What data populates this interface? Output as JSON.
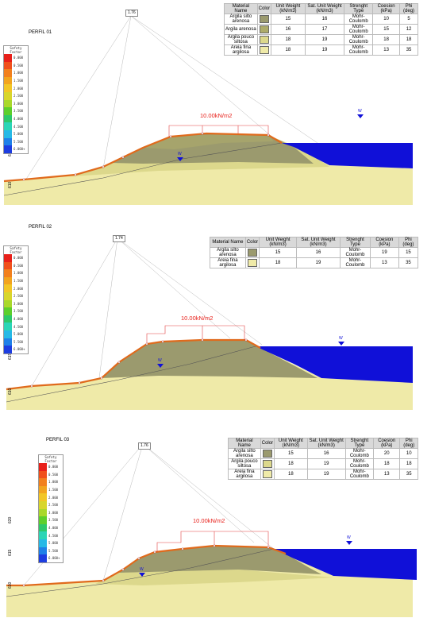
{
  "load_label": "10.00kN/m2",
  "water_label": "W",
  "legend_title_line1": "Safety",
  "legend_title_line2": "Factor",
  "legend_values": [
    "0.000",
    "0.500",
    "1.000",
    "1.500",
    "2.000",
    "2.500",
    "3.000",
    "3.500",
    "4.000",
    "4.500",
    "5.000",
    "5.500",
    "6.000+"
  ],
  "legend_colors": [
    "#e8201a",
    "#f0501c",
    "#f2801e",
    "#f2a41f",
    "#f2c626",
    "#d8d62c",
    "#a9d82b",
    "#5dcf2c",
    "#2dc86a",
    "#2bd5b6",
    "#26b9e6",
    "#1f80e8",
    "#1d3de0"
  ],
  "table_headers": [
    "Material Name",
    "Color",
    "Unit Weight (kN/m3)",
    "Sat. Unit Weight (kN/m3)",
    "Strenght Type",
    "Coesion (kPa)",
    "Phi (deg)"
  ],
  "profiles": [
    {
      "title": "PERFIL 01",
      "fs": "1.76",
      "elev_labels": [
        "620",
        "615",
        "610"
      ],
      "materials": [
        {
          "name": "Argila silto arenosa",
          "color": "#9b9a6e",
          "unit_weight": "15",
          "sat_weight": "16",
          "type": "Mohr-Coulomb",
          "c": "10",
          "phi": "5"
        },
        {
          "name": "Argila arenosa",
          "color": "#adab6a",
          "unit_weight": "16",
          "sat_weight": "17",
          "type": "Mohr-Coulomb",
          "c": "15",
          "phi": "12"
        },
        {
          "name": "Argila pouco siltosa",
          "color": "#dcd88c",
          "unit_weight": "18",
          "sat_weight": "19",
          "type": "Mohr-Coulomb",
          "c": "18",
          "phi": "18"
        },
        {
          "name": "Areia fina argilosa",
          "color": "#efeaa8",
          "unit_weight": "18",
          "sat_weight": "19",
          "type": "Mohr-Coulomb",
          "c": "13",
          "phi": "35"
        }
      ]
    },
    {
      "title": "PERFIL 02",
      "fs": "1.74",
      "elev_labels": [
        "620",
        "615",
        "610"
      ],
      "materials": [
        {
          "name": "Argila silto arenosa",
          "color": "#9b9a6e",
          "unit_weight": "15",
          "sat_weight": "16",
          "type": "Mohr-Coulomb",
          "c": "19",
          "phi": "15"
        },
        {
          "name": "Areia fina argilosa",
          "color": "#efeaa8",
          "unit_weight": "18",
          "sat_weight": "19",
          "type": "Mohr-Coulomb",
          "c": "13",
          "phi": "35"
        }
      ]
    },
    {
      "title": "PERFIL 03",
      "fs": "1.76",
      "elev_labels": [
        "620",
        "615",
        "610"
      ],
      "materials": [
        {
          "name": "Argila silto arenosa",
          "color": "#9b9a6e",
          "unit_weight": "15",
          "sat_weight": "16",
          "type": "Mohr-Coulomb",
          "c": "20",
          "phi": "10"
        },
        {
          "name": "Argila pouco siltosa",
          "color": "#dcd88c",
          "unit_weight": "18",
          "sat_weight": "19",
          "type": "Mohr-Coulomb",
          "c": "18",
          "phi": "18"
        },
        {
          "name": "Areia fina argilosa",
          "color": "#efeaa8",
          "unit_weight": "18",
          "sat_weight": "19",
          "type": "Mohr-Coulomb",
          "c": "13",
          "phi": "35"
        }
      ]
    }
  ]
}
